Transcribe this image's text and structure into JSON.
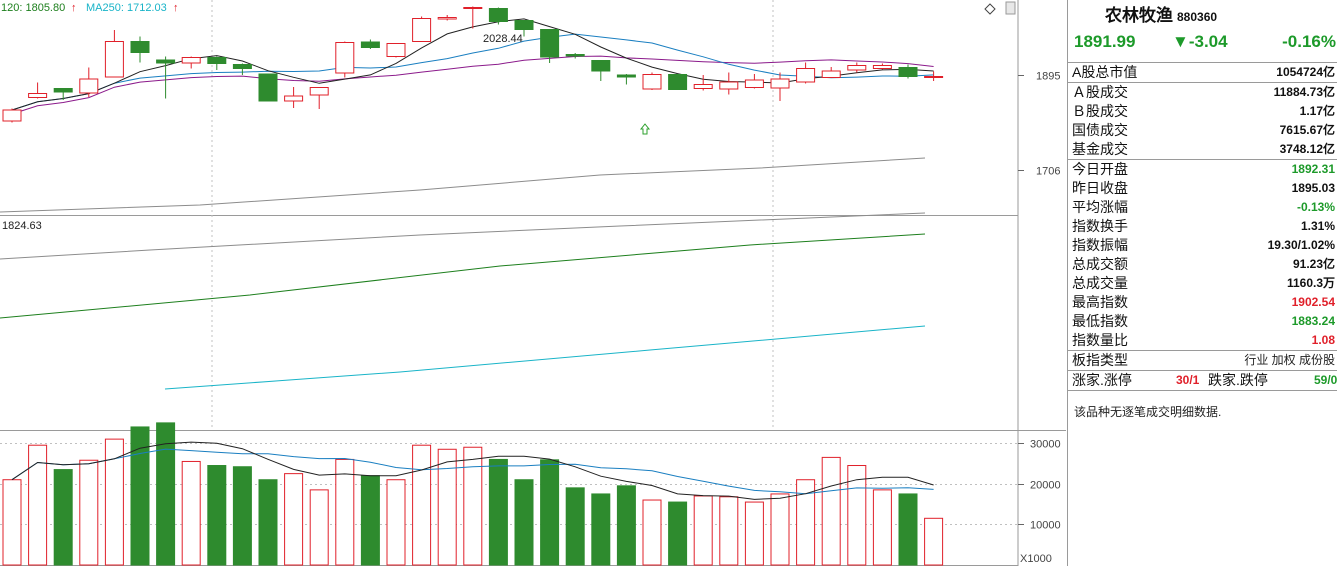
{
  "header": {
    "ma120_label": "120: 1805.80",
    "ma250_label": "MA250: 1712.03"
  },
  "chart_data": {
    "type": "candlestick",
    "ylim": [
      1615,
      2045
    ],
    "y_ticks": [
      1895,
      1706
    ],
    "high_label": "2028.44",
    "low_label": "1824.63",
    "candles": [
      {
        "o": 1803,
        "c": 1825,
        "h": 1828,
        "l": 1800
      },
      {
        "o": 1850,
        "c": 1858,
        "h": 1880,
        "l": 1848
      },
      {
        "o": 1868,
        "c": 1861,
        "h": 1868,
        "l": 1845
      },
      {
        "o": 1859,
        "c": 1887,
        "h": 1910,
        "l": 1851
      },
      {
        "o": 1891,
        "c": 1962,
        "h": 1985,
        "l": 1891
      },
      {
        "o": 1962,
        "c": 1940,
        "h": 1972,
        "l": 1920
      },
      {
        "o": 1925,
        "c": 1919,
        "h": 1932,
        "l": 1848
      },
      {
        "o": 1919,
        "c": 1930,
        "h": 1932,
        "l": 1908
      },
      {
        "o": 1930,
        "c": 1918,
        "h": 1932,
        "l": 1905
      },
      {
        "o": 1916,
        "c": 1908,
        "h": 1918,
        "l": 1895
      },
      {
        "o": 1897,
        "c": 1843,
        "h": 1897,
        "l": 1842
      },
      {
        "o": 1843,
        "c": 1853,
        "h": 1871,
        "l": 1829
      },
      {
        "o": 1855,
        "c": 1870,
        "h": 1870,
        "l": 1827
      },
      {
        "o": 1899,
        "c": 1960,
        "h": 1962,
        "l": 1890
      },
      {
        "o": 1961,
        "c": 1950,
        "h": 1966,
        "l": 1947
      },
      {
        "o": 1932,
        "c": 1958,
        "h": 1959,
        "l": 1930
      },
      {
        "o": 1962,
        "c": 2008,
        "h": 2012,
        "l": 1962
      },
      {
        "o": 2007,
        "c": 2010,
        "h": 2015,
        "l": 2004
      },
      {
        "o": 2029,
        "c": 2030,
        "h": 2032,
        "l": 1988
      },
      {
        "o": 2028,
        "c": 2002,
        "h": 2030,
        "l": 1996
      },
      {
        "o": 2004,
        "c": 1986,
        "h": 2005,
        "l": 1972
      },
      {
        "o": 1986,
        "c": 1931,
        "h": 1986,
        "l": 1919
      },
      {
        "o": 1936,
        "c": 1933,
        "h": 1939,
        "l": 1928
      },
      {
        "o": 1924,
        "c": 1903,
        "h": 1924,
        "l": 1883
      },
      {
        "o": 1895,
        "c": 1891,
        "h": 1897,
        "l": 1876
      },
      {
        "o": 1867,
        "c": 1896,
        "h": 1900,
        "l": 1865
      },
      {
        "o": 1896,
        "c": 1866,
        "h": 1896,
        "l": 1866
      },
      {
        "o": 1868,
        "c": 1876,
        "h": 1895,
        "l": 1864
      },
      {
        "o": 1867,
        "c": 1881,
        "h": 1900,
        "l": 1856
      },
      {
        "o": 1870,
        "c": 1885,
        "h": 1897,
        "l": 1868
      },
      {
        "o": 1869,
        "c": 1887,
        "h": 1900,
        "l": 1843
      },
      {
        "o": 1881,
        "c": 1908,
        "h": 1920,
        "l": 1878
      },
      {
        "o": 1890,
        "c": 1903,
        "h": 1911,
        "l": 1889
      },
      {
        "o": 1905,
        "c": 1914,
        "h": 1920,
        "l": 1900
      },
      {
        "o": 1908,
        "c": 1914,
        "h": 1918,
        "l": 1906
      },
      {
        "o": 1910,
        "c": 1892,
        "h": 1916,
        "l": 1888
      },
      {
        "o": 1892,
        "c": 1892,
        "h": 1902,
        "l": 1883
      }
    ],
    "volume_unit": "X1000",
    "volume_ylim": [
      0,
      33000
    ],
    "volume_ticks": [
      30000,
      20000,
      10000
    ],
    "volume": [
      21000,
      29500,
      23500,
      25800,
      31000,
      34000,
      35000,
      25500,
      24500,
      24200,
      21000,
      22500,
      18500,
      26000,
      22000,
      21000,
      29500,
      28500,
      29000,
      26000,
      21000,
      25900,
      19000,
      17500,
      19500,
      16000,
      15500,
      17000,
      16800,
      15500,
      17500,
      21000,
      26500,
      24500,
      18500,
      17500,
      11500
    ]
  },
  "panel": {
    "name": "农林牧渔",
    "code": "880360",
    "price": "1891.99",
    "change": "▼-3.04",
    "change_pct": "-0.16%",
    "rows": [
      {
        "label": "A股总市值",
        "value": "1054724亿",
        "cls": ""
      },
      {
        "label": "Ａ股成交",
        "value": "11884.73亿",
        "cls": ""
      },
      {
        "label": "Ｂ股成交",
        "value": "1.17亿",
        "cls": ""
      },
      {
        "label": "国债成交",
        "value": "7615.67亿",
        "cls": ""
      },
      {
        "label": "基金成交",
        "value": "3748.12亿",
        "cls": ""
      },
      {
        "label": "今日开盘",
        "value": "1892.31",
        "cls": "down"
      },
      {
        "label": "昨日收盘",
        "value": "1895.03",
        "cls": ""
      },
      {
        "label": "平均涨幅",
        "value": "-0.13%",
        "cls": "down"
      },
      {
        "label": "指数换手",
        "value": "1.31%",
        "cls": ""
      },
      {
        "label": "指数振幅",
        "value": "19.30/1.02%",
        "cls": ""
      },
      {
        "label": "总成交额",
        "value": "91.23亿",
        "cls": ""
      },
      {
        "label": "总成交量",
        "value": "1160.3万",
        "cls": ""
      },
      {
        "label": "最高指数",
        "value": "1902.54",
        "cls": "up"
      },
      {
        "label": "最低指数",
        "value": "1883.24",
        "cls": "down"
      },
      {
        "label": "指数量比",
        "value": "1.08",
        "cls": "up"
      }
    ],
    "board_type_label": "板指类型",
    "board_tags": [
      "行业",
      "加权",
      "成份股"
    ],
    "updown_label": "涨家.涨停",
    "updown_value": "30/1",
    "down_label": "跌家.跌停",
    "down_value": "59/0",
    "note": "该品种无逐笔成交明细数据."
  },
  "colors": {
    "up": "#e0202a",
    "down": "#2e8b2e",
    "ma5": "#222222",
    "ma10": "#1a7fc1",
    "ma20": "#8b1a8b",
    "ma60": "#8c8c8c",
    "ma120": "#1d7f1d",
    "ma250": "#19b4c8"
  }
}
